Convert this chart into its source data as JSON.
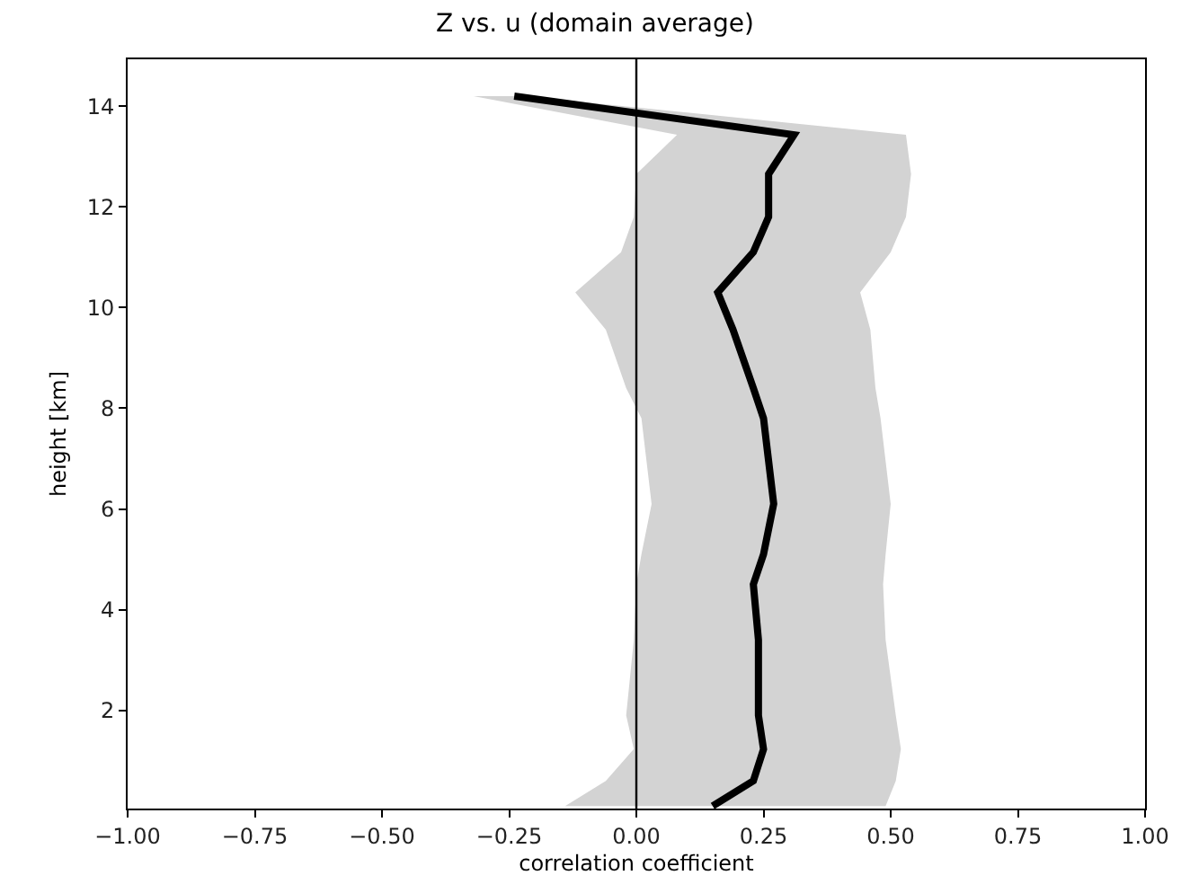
{
  "chart_data": {
    "type": "line",
    "orientation": "horizontal",
    "title": "Z vs. u (domain average)",
    "xlabel": "correlation coefficient",
    "ylabel": "height [km]",
    "x": [
      14.2,
      13.43,
      12.65,
      11.8,
      11.1,
      10.3,
      9.56,
      8.4,
      7.8,
      6.1,
      5.1,
      4.5,
      3.4,
      1.9,
      1.23,
      0.6,
      0.1
    ],
    "series": [
      {
        "color": "#000000",
        "values": [
          -0.24,
          0.31,
          0.26,
          0.26,
          0.23,
          0.16,
          0.19,
          0.23,
          0.25,
          0.27,
          0.25,
          0.23,
          0.24,
          0.24,
          0.25,
          0.23,
          0.15
        ],
        "lower": [
          -0.32,
          0.08,
          0.0,
          -0.005,
          -0.03,
          -0.12,
          -0.06,
          -0.02,
          0.01,
          0.03,
          0.01,
          0.0,
          -0.005,
          -0.02,
          -0.005,
          -0.06,
          -0.14
        ],
        "upper": [
          -0.22,
          0.53,
          0.54,
          0.53,
          0.5,
          0.44,
          0.46,
          0.47,
          0.48,
          0.5,
          0.49,
          0.485,
          0.49,
          0.51,
          0.52,
          0.51,
          0.49
        ]
      }
    ],
    "xlim": [
      -1,
      1
    ],
    "xticks": [
      {
        "value": -1,
        "label": "−1.00"
      },
      {
        "value": -0.75,
        "label": "−0.75"
      },
      {
        "value": -0.5,
        "label": "−0.50"
      },
      {
        "value": -0.25,
        "label": "−0.25"
      },
      {
        "value": 0,
        "label": "0.00"
      },
      {
        "value": 0.25,
        "label": "0.25"
      },
      {
        "value": 0.5,
        "label": "0.50"
      },
      {
        "value": 0.75,
        "label": "0.75"
      },
      {
        "value": 1,
        "label": "1.00"
      }
    ],
    "ylim": [
      0.05,
      14.93
    ],
    "yticks": [
      2,
      4,
      6,
      8,
      10,
      12,
      14
    ],
    "ref_lines": [
      {
        "axis": "x",
        "value": 0,
        "color": "#000000"
      }
    ],
    "marker": "none",
    "line_style": "solid"
  }
}
